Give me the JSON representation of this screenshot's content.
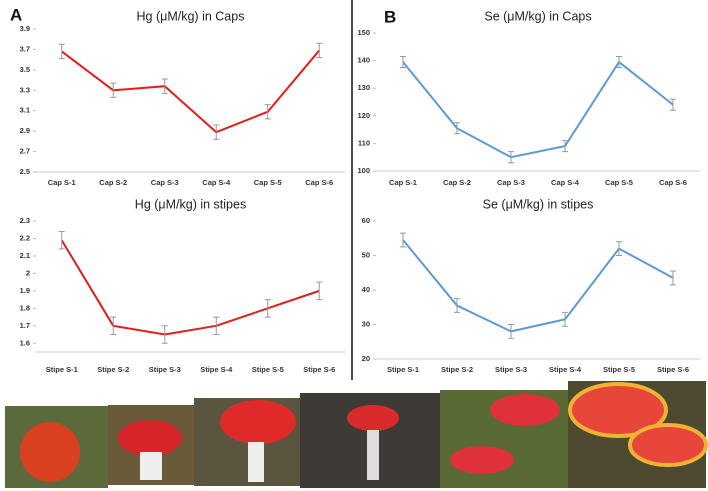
{
  "panel_labels": [
    "A",
    "B"
  ],
  "chart_data": [
    {
      "type": "line",
      "title": "Hg (μM/kg) in Caps",
      "categories": [
        "Cap S-1",
        "Cap S-2",
        "Cap S-3",
        "Cap S-4",
        "Cap S-5",
        "Cap S-6"
      ],
      "series": [
        {
          "color": "#e0201c",
          "values": [
            3.68,
            3.3,
            3.34,
            2.89,
            3.09,
            3.69
          ],
          "errors": [
            0.07,
            0.07,
            0.07,
            0.07,
            0.07,
            0.07
          ]
        }
      ],
      "ylim": [
        2.5,
        3.9
      ],
      "yticks": [
        2.5,
        2.7,
        2.9,
        3.1,
        3.3,
        3.5,
        3.7,
        3.9
      ]
    },
    {
      "type": "line",
      "title": "Hg (μM/kg) in stipes",
      "categories": [
        "Stipe S-1",
        "Stipe S-2",
        "Stipe S-3",
        "Stipe S-4",
        "Stipe S-5",
        "Stipe S-6"
      ],
      "series": [
        {
          "color": "#e0201c",
          "values": [
            2.19,
            1.7,
            1.65,
            1.7,
            1.8,
            1.9
          ],
          "errors": [
            0.05,
            0.05,
            0.05,
            0.05,
            0.05,
            0.05
          ]
        }
      ],
      "ylim": [
        1.55,
        2.3
      ],
      "yticks": [
        1.6,
        1.7,
        1.8,
        1.9,
        2.0,
        2.1,
        2.2,
        2.3
      ]
    },
    {
      "type": "line",
      "title": "Se (μM/kg) in Caps",
      "categories": [
        "Cap S-1",
        "Cap S-2",
        "Cap S-3",
        "Cap S-4",
        "Cap S-5",
        "Cap S-6"
      ],
      "series": [
        {
          "color": "#5b9bd5",
          "values": [
            139.5,
            115.5,
            105,
            109,
            139.5,
            124
          ],
          "errors": [
            2,
            2,
            2,
            2,
            2,
            2
          ]
        }
      ],
      "ylim": [
        100,
        150
      ],
      "yticks": [
        100,
        110,
        120,
        130,
        140,
        150
      ]
    },
    {
      "type": "line",
      "title": "Se (μM/kg) in stipes",
      "categories": [
        "Stipe S-1",
        "Stipe S-2",
        "Stipe S-3",
        "Stipe S-4",
        "Stipe S-5",
        "Stipe S-6"
      ],
      "series": [
        {
          "color": "#5b9bd5",
          "values": [
            54.5,
            35.5,
            28,
            31.5,
            52,
            43.5
          ],
          "errors": [
            2,
            2,
            2,
            2,
            2,
            2
          ]
        }
      ],
      "ylim": [
        20,
        60
      ],
      "yticks": [
        20,
        30,
        40,
        50,
        60
      ]
    }
  ]
}
